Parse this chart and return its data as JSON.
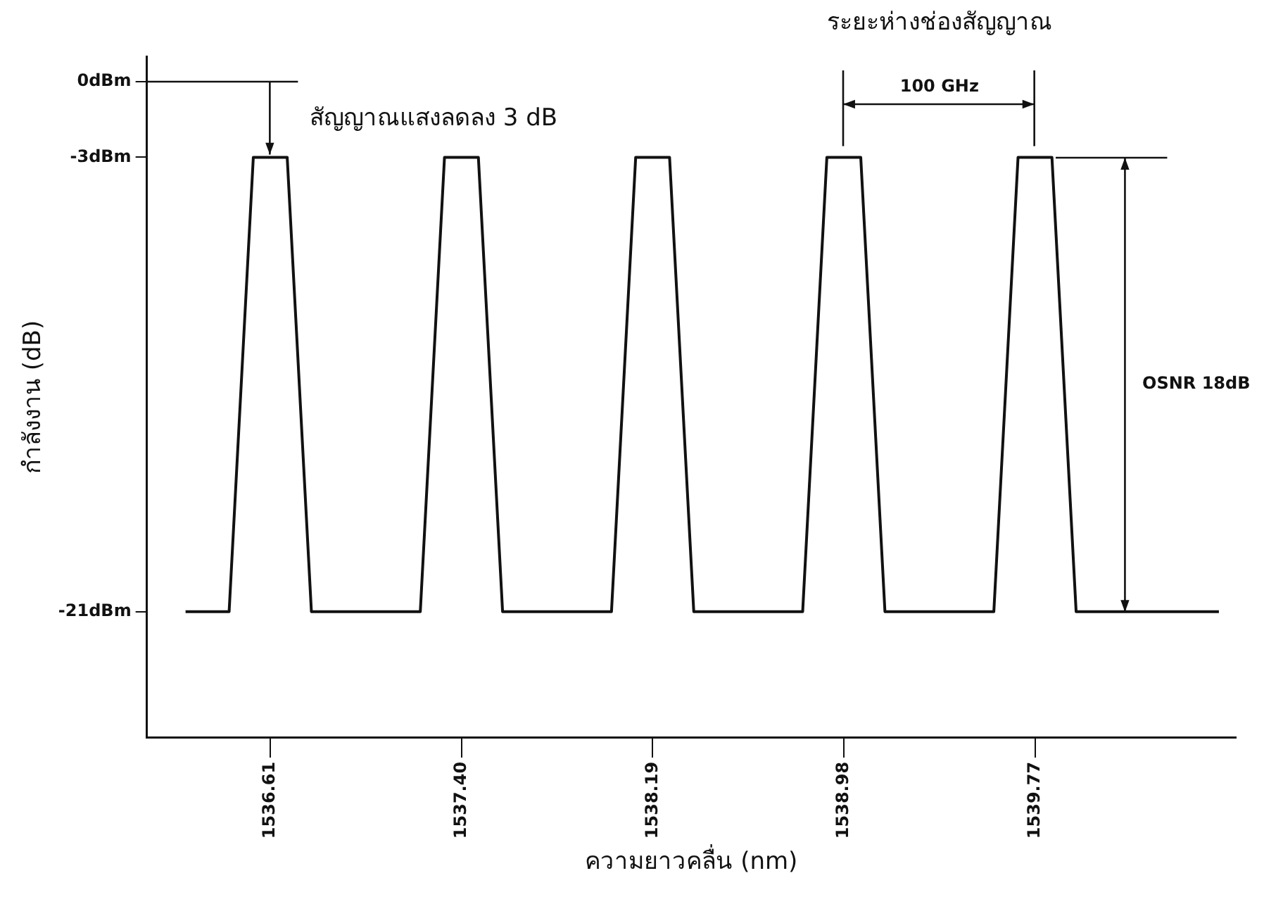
{
  "chart_data": {
    "type": "line",
    "xlabel": "ความยาวคลื่น (nm)",
    "ylabel": "กำลังงาน (dB)",
    "x": [
      1536.26,
      1536.44,
      1536.54,
      1536.68,
      1536.78,
      1537.23,
      1537.33,
      1537.47,
      1537.57,
      1538.02,
      1538.12,
      1538.26,
      1538.36,
      1538.81,
      1538.91,
      1539.05,
      1539.15,
      1539.6,
      1539.7,
      1539.84,
      1539.94,
      1540.53
    ],
    "values": [
      -21,
      -21,
      -3,
      -3,
      -21,
      -21,
      -3,
      -3,
      -21,
      -21,
      -3,
      -3,
      -21,
      -21,
      -3,
      -3,
      -21,
      -21,
      -3,
      -3,
      -21,
      -21
    ],
    "color": "#111111",
    "marker": "none",
    "line_style": "solid",
    "grid": false,
    "legend": false,
    "xlim": [
      1536.1,
      1540.6
    ],
    "xticks": [
      1536.61,
      {
        "value": 1537.4,
        "label": "1537.40"
      },
      1538.19,
      1538.98,
      1539.77
    ],
    "ylim": [
      -26,
      1
    ],
    "yticks": [
      {
        "value": -21,
        "label": "-21dBm"
      },
      {
        "value": -3,
        "label": "-3dBm"
      },
      {
        "value": 0,
        "label": "0dBm"
      }
    ],
    "annotations": [
      "สัญญาณแสงลดลง 3 dB",
      "100 GHz",
      "OSNR 18dB",
      "ระยะห่างช่องสัญญาณ"
    ]
  }
}
